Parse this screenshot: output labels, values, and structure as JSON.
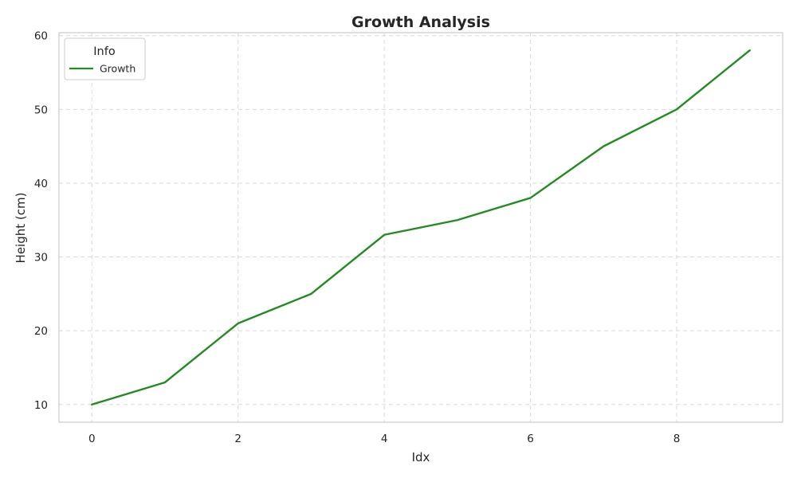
{
  "chart_data": {
    "type": "line",
    "title": "Growth Analysis",
    "xlabel": "Idx",
    "ylabel": "Height (cm)",
    "x": [
      0,
      1,
      2,
      3,
      4,
      5,
      6,
      7,
      8,
      9
    ],
    "series": [
      {
        "name": "Growth",
        "color": "#228b22",
        "values": [
          10,
          13,
          21,
          25,
          33,
          35,
          38,
          45,
          50,
          58
        ]
      }
    ],
    "xlim": [
      -0.45,
      9.45
    ],
    "ylim": [
      7.6,
      60.4
    ],
    "xticks": [
      0,
      2,
      4,
      6,
      8
    ],
    "yticks": [
      10,
      20,
      30,
      40,
      50,
      60
    ],
    "grid": true,
    "legend": {
      "title": "Info",
      "placement": "top-left"
    }
  }
}
